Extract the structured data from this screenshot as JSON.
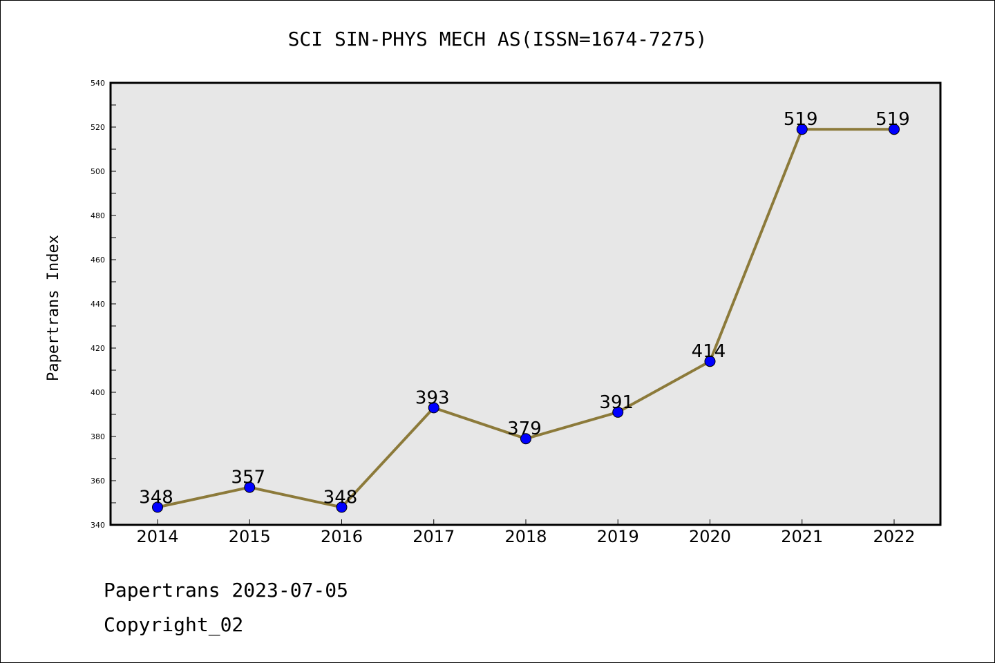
{
  "chart_data": {
    "type": "line",
    "title": "SCI SIN-PHYS MECH AS(ISSN=1674-7275)",
    "xlabel": "",
    "ylabel": "Papertrans Index",
    "categories": [
      "2014",
      "2015",
      "2016",
      "2017",
      "2018",
      "2019",
      "2020",
      "2021",
      "2022"
    ],
    "series": [
      {
        "values": [
          348,
          357,
          348,
          393,
          379,
          391,
          414,
          519,
          519
        ]
      }
    ],
    "data_labels": [
      "348",
      "357",
      "348",
      "393",
      "379",
      "391",
      "414",
      "519",
      "519"
    ],
    "ylim": [
      340,
      540
    ],
    "yticks": [
      "340",
      "360",
      "380",
      "400",
      "420",
      "440",
      "460",
      "480",
      "500",
      "520",
      "540"
    ],
    "grid": false,
    "legend": "none",
    "colors": {
      "line": "#8c7a3a",
      "marker": "#0000ff",
      "plot_bg": "#e7e7e7"
    }
  },
  "footer": {
    "line1": "Papertrans 2023-07-05",
    "line2": "Copyright_02"
  }
}
